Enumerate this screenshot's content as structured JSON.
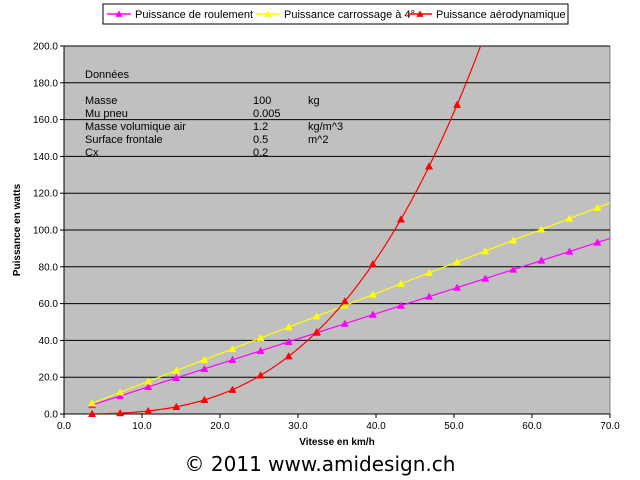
{
  "chart_data": {
    "type": "line",
    "xlabel": "Vitesse en km/h",
    "ylabel": "Puissance en watts",
    "xlim": [
      0,
      70
    ],
    "ylim": [
      0,
      200
    ],
    "x_ticks": [
      "0.0",
      "10.0",
      "20.0",
      "30.0",
      "40.0",
      "50.0",
      "60.0",
      "70.0"
    ],
    "y_ticks": [
      "0.0",
      "20.0",
      "40.0",
      "60.0",
      "80.0",
      "100.0",
      "120.0",
      "140.0",
      "160.0",
      "180.0",
      "200.0"
    ],
    "grid": "horizontal",
    "legend_position": "top",
    "plot_background": "#c0c0c0",
    "series": [
      {
        "name": "Puissance de roulement",
        "color": "#ff00ff",
        "marker": "triangle",
        "markers_x": [
          3.6,
          7.2,
          10.8,
          14.4,
          18,
          21.6,
          25.2,
          28.8,
          32.4,
          36,
          39.6,
          43.2,
          46.8,
          50.4,
          54,
          57.6,
          61.2,
          64.8,
          68.4
        ],
        "curve": "linear",
        "curve_x_end": 70,
        "values": [
          4.9,
          9.8,
          14.7,
          19.6,
          24.5,
          29.4,
          34.3,
          39.2,
          44.1,
          49.1,
          54.0,
          58.9,
          63.8,
          68.7,
          73.6,
          78.5,
          83.4,
          88.3,
          93.2
        ]
      },
      {
        "name": "Puissance carrossage à 4°",
        "color": "#ffff00",
        "marker": "triangle",
        "markers_x": [
          3.6,
          7.2,
          10.8,
          14.4,
          18,
          21.6,
          25.2,
          28.8,
          32.4,
          36,
          39.6,
          43.2,
          46.8,
          50.4,
          54,
          57.6,
          61.2,
          64.8,
          68.4
        ],
        "curve": "linear",
        "curve_x_end": 70,
        "values": [
          5.9,
          11.8,
          17.7,
          23.6,
          29.5,
          35.4,
          41.3,
          47.2,
          53.1,
          59.0,
          64.9,
          70.8,
          76.7,
          82.6,
          88.5,
          94.4,
          100.3,
          106.2,
          112.1
        ]
      },
      {
        "name": "Puissance aérodynamique",
        "color": "#ff0000",
        "marker": "triangle",
        "markers_x": [
          3.6,
          7.2,
          10.8,
          14.4,
          18,
          21.6,
          25.2,
          28.8,
          32.4,
          36,
          39.6,
          43.2,
          46.8,
          50.4
        ],
        "curve": "cubic",
        "curve_x_end": 54.2,
        "values": [
          0.06,
          0.49,
          1.65,
          3.9,
          7.7,
          13.2,
          21.0,
          31.4,
          44.6,
          61.3,
          81.5,
          105.8,
          134.6,
          168.1
        ]
      }
    ]
  },
  "data_box": {
    "heading": "Données",
    "rows": [
      {
        "label": "Masse",
        "value": "100",
        "unit": "kg"
      },
      {
        "label": "Mu pneu",
        "value": "0.005",
        "unit": ""
      },
      {
        "label": "Masse volumique air",
        "value": "1.2",
        "unit": "kg/m^3"
      },
      {
        "label": "Surface frontale",
        "value": "0.5",
        "unit": "m^2"
      },
      {
        "label": "Cx",
        "value": "0.2",
        "unit": ""
      }
    ]
  },
  "footer": {
    "text": "© 2011 www.amidesign.ch"
  }
}
